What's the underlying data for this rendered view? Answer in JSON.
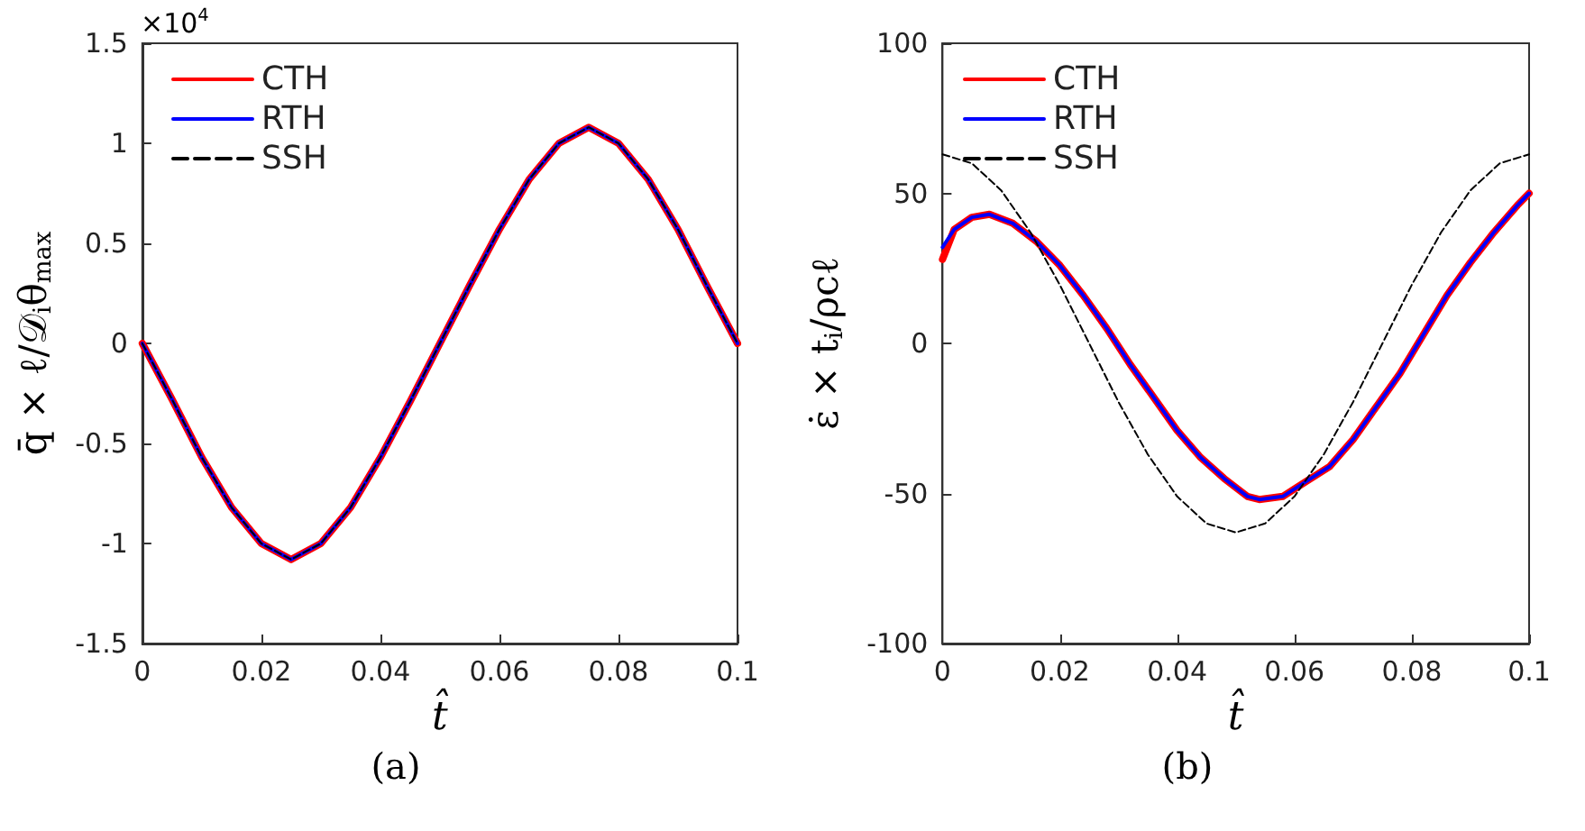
{
  "chart_data": [
    {
      "type": "line",
      "title": "(a)",
      "xlabel": "t̂",
      "ylabel": "q̄ × ℓ/𝒟$_{i}$θ$_{max}$",
      "annotations": [
        "×10$^{4}$"
      ],
      "x": [
        0,
        0.005,
        0.01,
        0.015,
        0.02,
        0.025,
        0.03,
        0.035,
        0.04,
        0.045,
        0.05,
        0.055,
        0.06,
        0.065,
        0.07,
        0.075,
        0.08,
        0.085,
        0.09,
        0.095,
        0.1
      ],
      "series": [
        {
          "name": "CTH",
          "color": "#ff0000",
          "line_style": "solid",
          "values": [
            0,
            -0.28,
            -0.57,
            -0.82,
            -1.0,
            -1.08,
            -1.0,
            -0.82,
            -0.57,
            -0.29,
            0,
            0.29,
            0.57,
            0.82,
            1.0,
            1.08,
            1.0,
            0.82,
            0.57,
            0.28,
            0
          ]
        },
        {
          "name": "RTH",
          "color": "#0000ff",
          "line_style": "solid",
          "values": [
            0,
            -0.28,
            -0.57,
            -0.82,
            -1.0,
            -1.08,
            -1.0,
            -0.82,
            -0.57,
            -0.29,
            0,
            0.29,
            0.57,
            0.82,
            1.0,
            1.08,
            1.0,
            0.82,
            0.57,
            0.28,
            0
          ]
        },
        {
          "name": "SSH",
          "color": "#000000",
          "line_style": "dashed",
          "values": [
            0,
            -0.28,
            -0.57,
            -0.82,
            -1.0,
            -1.08,
            -1.0,
            -0.82,
            -0.57,
            -0.29,
            0,
            0.29,
            0.57,
            0.82,
            1.0,
            1.08,
            1.0,
            0.82,
            0.57,
            0.28,
            0
          ]
        }
      ],
      "xlim": [
        0,
        0.1
      ],
      "xticks": [
        0,
        0.02,
        0.04,
        0.06,
        0.08,
        0.1
      ],
      "ylim": [
        -1.5,
        1.5
      ],
      "yticks": [
        -1.5,
        -1,
        -0.5,
        0,
        0.5,
        1,
        1.5
      ],
      "grid": false,
      "legend": "top left"
    },
    {
      "type": "line",
      "title": "(b)",
      "xlabel": "t̂",
      "ylabel": "ε̇ × t$_{i}$/ρcℓ",
      "series": [
        {
          "name": "CTH",
          "color": "#ff0000",
          "line_style": "solid",
          "x": [
            0,
            0.002,
            0.005,
            0.008,
            0.012,
            0.016,
            0.02,
            0.024,
            0.028,
            0.032,
            0.036,
            0.04,
            0.044,
            0.048,
            0.052,
            0.054,
            0.058,
            0.062,
            0.066,
            0.07,
            0.074,
            0.078,
            0.082,
            0.086,
            0.09,
            0.094,
            0.098,
            0.1
          ],
          "values": [
            28,
            38,
            42,
            43,
            40,
            34,
            26,
            16,
            5,
            -7,
            -18,
            -29,
            -38,
            -45,
            -51,
            -52,
            -51,
            -46,
            -41,
            -32,
            -21,
            -10,
            3,
            16,
            27,
            37,
            46,
            50
          ]
        },
        {
          "name": "RTH",
          "color": "#0000ff",
          "line_style": "solid",
          "x": [
            0,
            0.002,
            0.005,
            0.008,
            0.012,
            0.016,
            0.02,
            0.024,
            0.028,
            0.032,
            0.036,
            0.04,
            0.044,
            0.048,
            0.052,
            0.054,
            0.058,
            0.062,
            0.066,
            0.07,
            0.074,
            0.078,
            0.082,
            0.086,
            0.09,
            0.094,
            0.098,
            0.1
          ],
          "values": [
            32,
            38,
            42,
            43,
            40,
            34,
            26,
            16,
            5,
            -7,
            -18,
            -29,
            -38,
            -45,
            -51,
            -52,
            -51,
            -46,
            -41,
            -32,
            -21,
            -10,
            3,
            16,
            27,
            37,
            46,
            50
          ]
        },
        {
          "name": "SSH",
          "color": "#000000",
          "line_style": "dashed",
          "x": [
            0,
            0.005,
            0.01,
            0.015,
            0.02,
            0.025,
            0.03,
            0.035,
            0.04,
            0.045,
            0.05,
            0.055,
            0.06,
            0.065,
            0.07,
            0.075,
            0.08,
            0.085,
            0.09,
            0.095,
            0.1
          ],
          "values": [
            63,
            60,
            51,
            37,
            19.5,
            0,
            -19.5,
            -37,
            -51,
            -60,
            -63,
            -60,
            -51,
            -37,
            -19.5,
            0,
            19.5,
            37,
            51,
            60,
            63
          ]
        }
      ],
      "xlim": [
        0,
        0.1
      ],
      "xticks": [
        0,
        0.02,
        0.04,
        0.06,
        0.08,
        0.1
      ],
      "ylim": [
        -100,
        100
      ],
      "yticks": [
        -100,
        -50,
        0,
        50,
        100
      ],
      "grid": false,
      "legend": "top left"
    }
  ]
}
